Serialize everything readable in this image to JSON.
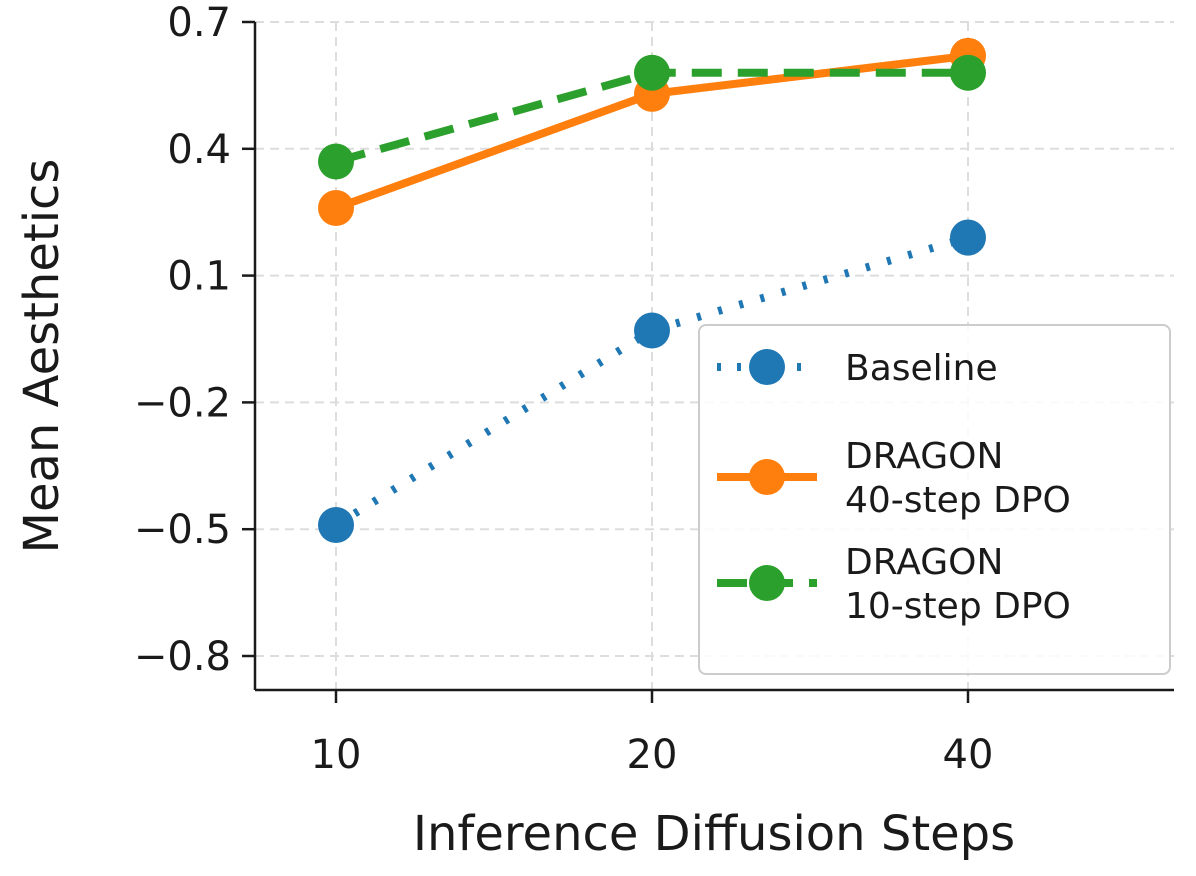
{
  "chart_data": {
    "type": "line",
    "title": "",
    "xlabel": "Inference Diffusion Steps",
    "ylabel": "Mean Aesthetics",
    "categories": [
      "10",
      "20",
      "40"
    ],
    "yticks": [
      "0.7",
      "0.4",
      "0.1",
      "−0.2",
      "−0.5",
      "−0.8"
    ],
    "ytick_values": [
      0.7,
      0.4,
      0.1,
      -0.2,
      -0.5,
      -0.8
    ],
    "ylim": [
      -0.85,
      0.7
    ],
    "grid": true,
    "legend_position": "lower-right",
    "series": [
      {
        "name": "Baseline",
        "name_lines": [
          "Baseline"
        ],
        "values": [
          -0.49,
          -0.03,
          0.19
        ],
        "color": "#1f77b4",
        "line_style": "dotted"
      },
      {
        "name": "DRAGON 40-step DPO",
        "name_lines": [
          "DRAGON",
          "40-step DPO"
        ],
        "values": [
          0.26,
          0.53,
          0.62
        ],
        "color": "#ff7f0e",
        "line_style": "solid"
      },
      {
        "name": "DRAGON 10-step DPO",
        "name_lines": [
          "DRAGON",
          "10-step DPO"
        ],
        "values": [
          0.37,
          0.58,
          0.58
        ],
        "color": "#2ca02c",
        "line_style": "dashed"
      }
    ]
  }
}
